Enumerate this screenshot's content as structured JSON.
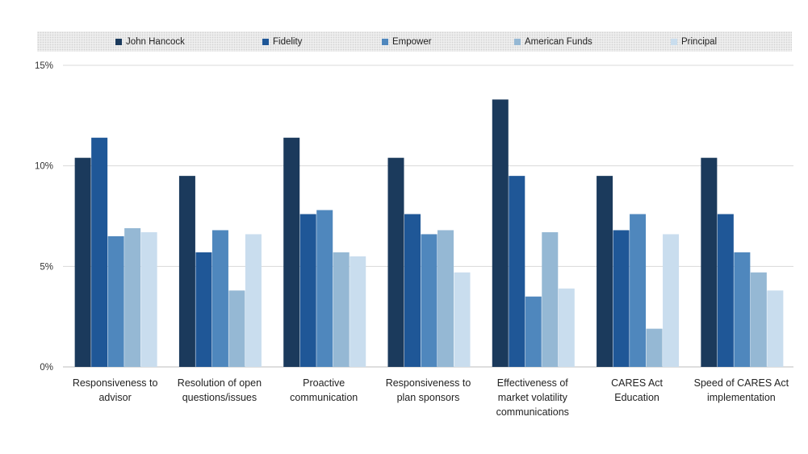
{
  "chart_data": {
    "type": "bar",
    "title": "",
    "xlabel": "",
    "ylabel": "",
    "ylim": [
      0,
      15
    ],
    "yticks": [
      "0%",
      "5%",
      "10%",
      "15%"
    ],
    "ytick_values": [
      0,
      5,
      10,
      15
    ],
    "grid": true,
    "legend_position": "top",
    "categories": [
      "Responsiveness to advisor",
      "Resolution of open questions/issues",
      "Proactive communication",
      "Responsiveness to plan sponsors",
      "Effectiveness of market volatility communications",
      "CARES Act Education",
      "Speed of CARES Act implementation"
    ],
    "category_lines": [
      [
        "Responsiveness to",
        "advisor"
      ],
      [
        "Resolution of open",
        "questions/issues"
      ],
      [
        "Proactive",
        "communication"
      ],
      [
        "Responsiveness to",
        "plan sponsors"
      ],
      [
        "Effectiveness of",
        "market volatility",
        "communications"
      ],
      [
        "CARES Act",
        "Education"
      ],
      [
        "Speed of CARES Act",
        "implementation"
      ]
    ],
    "series": [
      {
        "name": "John Hancock",
        "color": "#1b3a5c",
        "values": [
          10.4,
          9.5,
          11.4,
          10.4,
          13.3,
          9.5,
          10.4
        ]
      },
      {
        "name": "Fidelity",
        "color": "#1f5797",
        "values": [
          11.4,
          5.7,
          7.6,
          7.6,
          9.5,
          6.8,
          7.6
        ]
      },
      {
        "name": "Empower",
        "color": "#4f87bd",
        "values": [
          6.5,
          6.8,
          7.8,
          6.6,
          3.5,
          7.6,
          5.7
        ]
      },
      {
        "name": "American Funds",
        "color": "#95b8d4",
        "values": [
          6.9,
          3.8,
          5.7,
          6.8,
          6.7,
          1.9,
          4.7
        ]
      },
      {
        "name": "Principal",
        "color": "#c9ddee",
        "values": [
          6.7,
          6.6,
          5.5,
          4.7,
          3.9,
          6.6,
          3.8
        ]
      }
    ]
  }
}
